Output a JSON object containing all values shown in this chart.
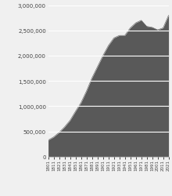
{
  "years": [
    1801,
    1811,
    1821,
    1831,
    1841,
    1851,
    1861,
    1871,
    1881,
    1891,
    1901,
    1911,
    1921,
    1931,
    1941,
    1951,
    1961,
    1971,
    1981,
    1991,
    2001,
    2011,
    2021
  ],
  "population": [
    328000,
    390000,
    480000,
    590000,
    720000,
    900000,
    1070000,
    1300000,
    1560000,
    1780000,
    2000000,
    2200000,
    2350000,
    2400000,
    2400000,
    2550000,
    2650000,
    2700000,
    2580000,
    2560000,
    2510000,
    2550000,
    2800000
  ],
  "fill_color": "#595959",
  "line_color": "#595959",
  "bg_color": "#f0f0f0",
  "plot_bg_color": "#f0f0f0",
  "ylim": [
    0,
    3000000
  ],
  "yticks": [
    0,
    500000,
    1000000,
    1500000,
    2000000,
    2500000,
    3000000
  ],
  "grid_color": "#ffffff",
  "tick_label_fontsize": 4.0,
  "ytick_label_fontsize": 5.0
}
